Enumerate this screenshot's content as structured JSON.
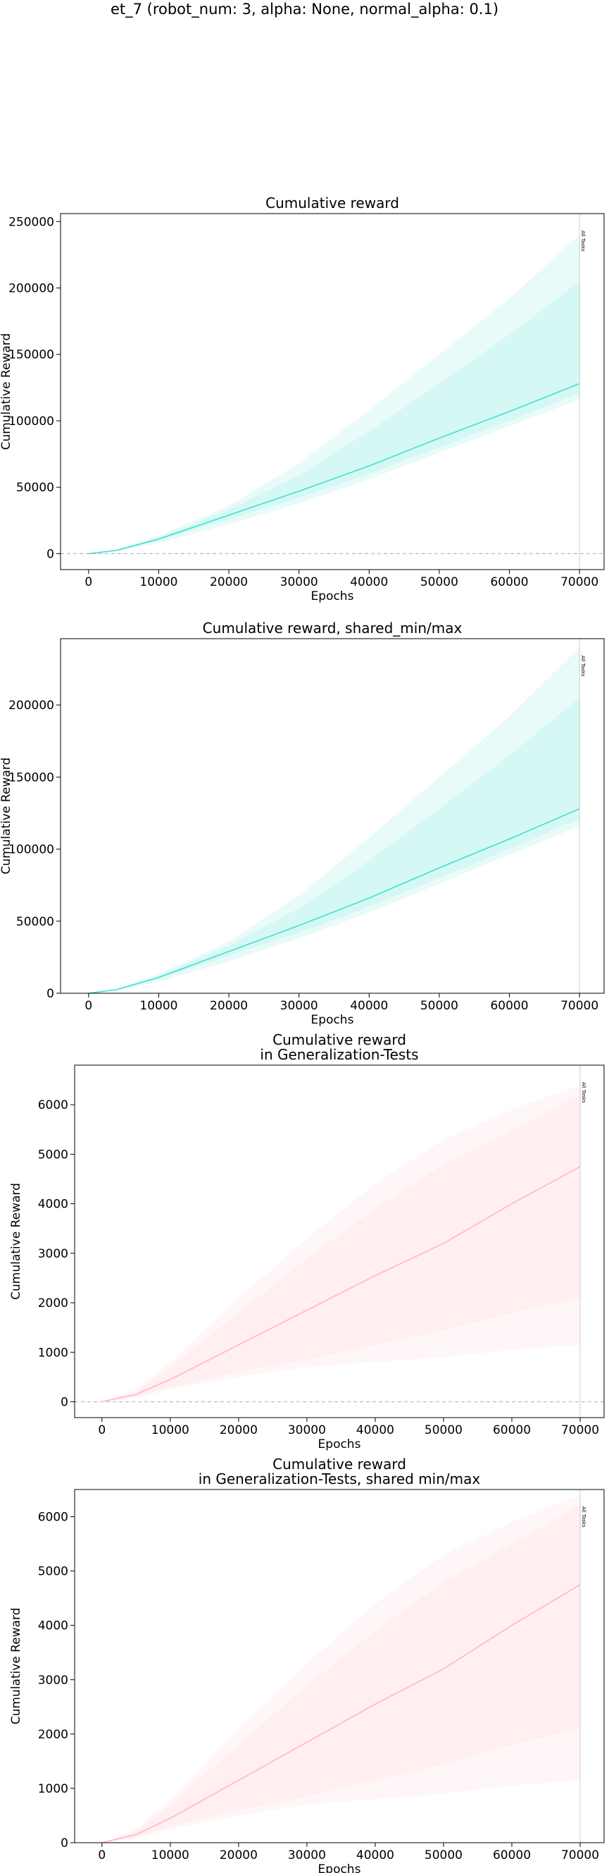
{
  "figure": {
    "suptitle": "et_7 (robot_num: 3, alpha: None, normal_alpha: 0.1)"
  },
  "chart_data": [
    {
      "type": "line",
      "title": "Cumulative reward",
      "xlabel": "Epochs",
      "ylabel": "Cumulative Reward",
      "xlim": [
        -4000,
        73500
      ],
      "ylim": [
        -12000,
        256000
      ],
      "xticks": [
        0,
        10000,
        20000,
        30000,
        40000,
        50000,
        60000,
        70000
      ],
      "yticks": [
        0,
        50000,
        100000,
        150000,
        200000,
        250000
      ],
      "grid": false,
      "zero_line": true,
      "vline": {
        "x": 70000,
        "label": "All Tasks"
      },
      "color": "#40e0d0",
      "x": [
        0,
        4000,
        10000,
        20000,
        30000,
        40000,
        50000,
        60000,
        70000
      ],
      "series": [
        {
          "role": "mean",
          "values": [
            0,
            2500,
            11000,
            29000,
            47000,
            66000,
            87000,
            107000,
            128000
          ]
        },
        {
          "role": "band_inner_low",
          "values": [
            0,
            2300,
            10000,
            26000,
            42000,
            60000,
            80000,
            100000,
            121000
          ]
        },
        {
          "role": "band_inner_high",
          "values": [
            0,
            2700,
            12000,
            33000,
            59000,
            92000,
            128000,
            165000,
            205000
          ]
        },
        {
          "role": "band_outer_low",
          "values": [
            0,
            2000,
            8000,
            22000,
            38000,
            56000,
            76000,
            96000,
            116000
          ]
        },
        {
          "role": "band_outer_high",
          "values": [
            0,
            3000,
            13500,
            36000,
            68000,
            108000,
            150000,
            192000,
            240000
          ]
        }
      ]
    },
    {
      "type": "line",
      "title": "Cumulative reward, shared_min/max",
      "xlabel": "Epochs",
      "ylabel": "Cumulative Reward",
      "xlim": [
        -4000,
        73500
      ],
      "ylim": [
        0,
        246000
      ],
      "xticks": [
        0,
        10000,
        20000,
        30000,
        40000,
        50000,
        60000,
        70000
      ],
      "yticks": [
        0,
        50000,
        100000,
        150000,
        200000
      ],
      "grid": false,
      "zero_line": false,
      "vline": {
        "x": 70000,
        "label": "All Tasks"
      },
      "color": "#40e0d0",
      "x": [
        0,
        4000,
        10000,
        20000,
        30000,
        40000,
        50000,
        60000,
        70000
      ],
      "series": [
        {
          "role": "mean",
          "values": [
            0,
            2500,
            11000,
            29000,
            47000,
            66000,
            87000,
            107000,
            128000
          ]
        },
        {
          "role": "band_inner_low",
          "values": [
            0,
            2300,
            10000,
            26000,
            42000,
            60000,
            80000,
            100000,
            121000
          ]
        },
        {
          "role": "band_inner_high",
          "values": [
            0,
            2700,
            12000,
            33000,
            59000,
            92000,
            128000,
            165000,
            205000
          ]
        },
        {
          "role": "band_outer_low",
          "values": [
            0,
            2000,
            8000,
            22000,
            38000,
            56000,
            76000,
            96000,
            116000
          ]
        },
        {
          "role": "band_outer_high",
          "values": [
            0,
            3000,
            13500,
            36000,
            68000,
            108000,
            150000,
            192000,
            240000
          ]
        }
      ]
    },
    {
      "type": "line",
      "title": "Cumulative reward\nin Generalization-Tests",
      "xlabel": "Epochs",
      "ylabel": "Cumulative Reward",
      "xlim": [
        -4000,
        73500
      ],
      "ylim": [
        -320,
        6800
      ],
      "xticks": [
        0,
        10000,
        20000,
        30000,
        40000,
        50000,
        60000,
        70000
      ],
      "yticks": [
        0,
        1000,
        2000,
        3000,
        4000,
        5000,
        6000
      ],
      "grid": false,
      "zero_line": true,
      "vline": {
        "x": 70000,
        "label": "All Tasks"
      },
      "color": "#ffb6c1",
      "x": [
        0,
        5000,
        10000,
        20000,
        30000,
        40000,
        50000,
        60000,
        70000
      ],
      "series": [
        {
          "role": "mean",
          "values": [
            0,
            150,
            450,
            1150,
            1850,
            2550,
            3200,
            4000,
            4750
          ]
        },
        {
          "role": "band_inner_low",
          "values": [
            0,
            100,
            300,
            600,
            850,
            1150,
            1450,
            1800,
            2100
          ]
        },
        {
          "role": "band_inner_high",
          "values": [
            0,
            200,
            700,
            1800,
            2900,
            3900,
            4800,
            5500,
            6200
          ]
        },
        {
          "role": "band_outer_low",
          "values": [
            0,
            80,
            250,
            500,
            700,
            800,
            900,
            1050,
            1150
          ]
        },
        {
          "role": "band_outer_high",
          "values": [
            0,
            250,
            800,
            2100,
            3300,
            4400,
            5300,
            5900,
            6400
          ]
        }
      ]
    },
    {
      "type": "line",
      "title": "Cumulative reward\nin Generalization-Tests, shared min/max",
      "xlabel": "Epochs",
      "ylabel": "Cumulative Reward",
      "xlim": [
        -4000,
        73500
      ],
      "ylim": [
        0,
        6500
      ],
      "xticks": [
        0,
        10000,
        20000,
        30000,
        40000,
        50000,
        60000,
        70000
      ],
      "yticks": [
        1000,
        2000,
        3000,
        4000,
        5000,
        6000
      ],
      "y_zero_tick": "0",
      "grid": false,
      "zero_line": false,
      "vline": {
        "x": 70000,
        "label": "All Tasks"
      },
      "color": "#ffb6c1",
      "x": [
        0,
        5000,
        10000,
        20000,
        30000,
        40000,
        50000,
        60000,
        70000
      ],
      "series": [
        {
          "role": "mean",
          "values": [
            0,
            150,
            450,
            1150,
            1850,
            2550,
            3200,
            4000,
            4750
          ]
        },
        {
          "role": "band_inner_low",
          "values": [
            0,
            100,
            300,
            600,
            850,
            1150,
            1450,
            1800,
            2100
          ]
        },
        {
          "role": "band_inner_high",
          "values": [
            0,
            200,
            700,
            1800,
            2900,
            3900,
            4800,
            5500,
            6200
          ]
        },
        {
          "role": "band_outer_low",
          "values": [
            0,
            80,
            250,
            500,
            700,
            800,
            900,
            1050,
            1150
          ]
        },
        {
          "role": "band_outer_high",
          "values": [
            0,
            250,
            800,
            2100,
            3300,
            4400,
            5300,
            5900,
            6400
          ]
        }
      ]
    }
  ]
}
